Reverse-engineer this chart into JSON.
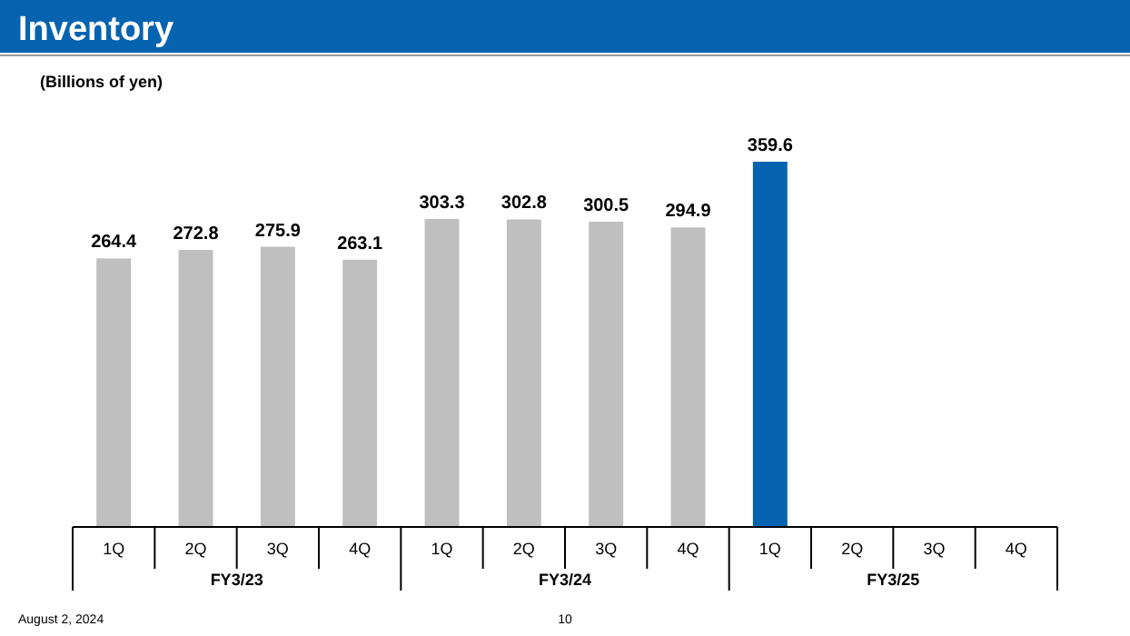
{
  "chart_data": {
    "type": "bar",
    "title": "Inventory",
    "ylabel": "(Billions of yen)",
    "categories": [
      "1Q",
      "2Q",
      "3Q",
      "4Q",
      "1Q",
      "2Q",
      "3Q",
      "4Q",
      "1Q",
      "2Q",
      "3Q",
      "4Q"
    ],
    "values": [
      264.4,
      272.8,
      275.9,
      263.1,
      303.3,
      302.8,
      300.5,
      294.9,
      359.6,
      null,
      null,
      null
    ],
    "colors": [
      "#bfbfbf",
      "#bfbfbf",
      "#bfbfbf",
      "#bfbfbf",
      "#bfbfbf",
      "#bfbfbf",
      "#bfbfbf",
      "#bfbfbf",
      "#0563b0",
      null,
      null,
      null
    ],
    "data_labels": true,
    "annotations": [
      "FY3/23",
      "FY3/24",
      "FY3/25",
      "August 2, 2024",
      "10"
    ]
  }
}
